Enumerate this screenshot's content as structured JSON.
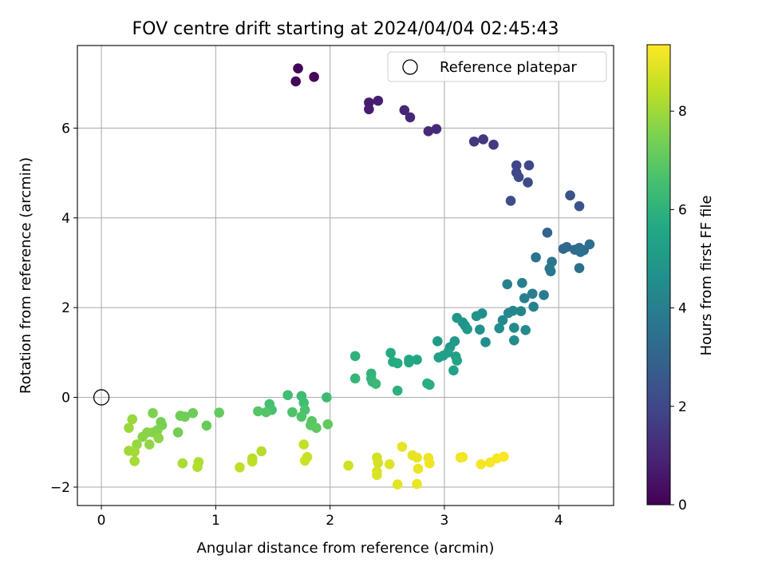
{
  "chart_data": {
    "type": "scatter",
    "title": "FOV centre drift starting at 2024/04/04 02:45:43",
    "xlabel": "Angular distance from reference (arcmin)",
    "ylabel": "Rotation from reference (arcmin)",
    "xlim": [
      -0.21,
      4.48
    ],
    "ylim": [
      -2.41,
      7.84
    ],
    "xticks": [
      0,
      1,
      2,
      3,
      4
    ],
    "xtick_labels": [
      "0",
      "1",
      "2",
      "3",
      "4"
    ],
    "yticks": [
      -2,
      0,
      2,
      4,
      6
    ],
    "ytick_labels": [
      "−2",
      "0",
      "2",
      "4",
      "6"
    ],
    "grid": true,
    "legend": {
      "placement": "top-right",
      "entries": [
        "Reference platepar"
      ]
    },
    "reference_point": {
      "x": 0,
      "y": 0,
      "label": "Reference platepar"
    },
    "colorbar": {
      "label": "Hours from first FF file",
      "range": [
        0,
        9.35
      ],
      "ticks": [
        0,
        2,
        4,
        6,
        8
      ],
      "tick_labels": [
        "0",
        "2",
        "4",
        "6",
        "8"
      ],
      "colormap": "viridis"
    },
    "points": [
      {
        "x": 1.72,
        "y": 7.33,
        "t": 0.05
      },
      {
        "x": 1.7,
        "y": 7.04,
        "t": 0.1
      },
      {
        "x": 1.86,
        "y": 7.14,
        "t": 0.15
      },
      {
        "x": 2.34,
        "y": 6.57,
        "t": 0.7
      },
      {
        "x": 2.34,
        "y": 6.42,
        "t": 0.75
      },
      {
        "x": 2.42,
        "y": 6.61,
        "t": 0.8
      },
      {
        "x": 2.65,
        "y": 6.4,
        "t": 1.0
      },
      {
        "x": 2.7,
        "y": 6.24,
        "t": 1.05
      },
      {
        "x": 2.86,
        "y": 5.93,
        "t": 1.1
      },
      {
        "x": 2.93,
        "y": 5.98,
        "t": 1.15
      },
      {
        "x": 3.26,
        "y": 5.7,
        "t": 1.45
      },
      {
        "x": 3.34,
        "y": 5.75,
        "t": 1.5
      },
      {
        "x": 3.43,
        "y": 5.63,
        "t": 1.55
      },
      {
        "x": 3.63,
        "y": 5.17,
        "t": 1.9
      },
      {
        "x": 3.63,
        "y": 5.01,
        "t": 1.95
      },
      {
        "x": 3.65,
        "y": 4.91,
        "t": 2.0
      },
      {
        "x": 3.74,
        "y": 5.17,
        "t": 2.05
      },
      {
        "x": 3.73,
        "y": 4.79,
        "t": 2.1
      },
      {
        "x": 3.58,
        "y": 4.38,
        "t": 2.2
      },
      {
        "x": 4.1,
        "y": 4.5,
        "t": 2.4
      },
      {
        "x": 4.18,
        "y": 4.26,
        "t": 2.45
      },
      {
        "x": 3.9,
        "y": 3.67,
        "t": 3.0
      },
      {
        "x": 4.04,
        "y": 3.31,
        "t": 3.1
      },
      {
        "x": 4.07,
        "y": 3.35,
        "t": 3.15
      },
      {
        "x": 4.14,
        "y": 3.29,
        "t": 3.2
      },
      {
        "x": 4.18,
        "y": 3.33,
        "t": 3.25
      },
      {
        "x": 4.22,
        "y": 3.28,
        "t": 3.3
      },
      {
        "x": 4.27,
        "y": 3.41,
        "t": 3.35
      },
      {
        "x": 4.19,
        "y": 3.24,
        "t": 3.4
      },
      {
        "x": 4.18,
        "y": 2.88,
        "t": 3.45
      },
      {
        "x": 3.8,
        "y": 3.12,
        "t": 3.55
      },
      {
        "x": 3.94,
        "y": 3.02,
        "t": 3.65
      },
      {
        "x": 3.92,
        "y": 2.87,
        "t": 3.7
      },
      {
        "x": 3.93,
        "y": 2.81,
        "t": 3.75
      },
      {
        "x": 3.87,
        "y": 2.28,
        "t": 3.85
      },
      {
        "x": 3.77,
        "y": 2.31,
        "t": 3.95
      },
      {
        "x": 3.7,
        "y": 2.21,
        "t": 4.0
      },
      {
        "x": 3.68,
        "y": 2.55,
        "t": 4.05
      },
      {
        "x": 3.55,
        "y": 2.52,
        "t": 4.1
      },
      {
        "x": 3.78,
        "y": 2.02,
        "t": 4.15
      },
      {
        "x": 3.67,
        "y": 1.92,
        "t": 4.2
      },
      {
        "x": 3.6,
        "y": 1.93,
        "t": 4.25
      },
      {
        "x": 3.56,
        "y": 1.88,
        "t": 4.3
      },
      {
        "x": 3.51,
        "y": 1.72,
        "t": 4.35
      },
      {
        "x": 3.71,
        "y": 1.5,
        "t": 4.4
      },
      {
        "x": 3.61,
        "y": 1.55,
        "t": 4.45
      },
      {
        "x": 3.61,
        "y": 1.27,
        "t": 4.5
      },
      {
        "x": 3.48,
        "y": 1.54,
        "t": 4.55
      },
      {
        "x": 3.36,
        "y": 1.23,
        "t": 4.6
      },
      {
        "x": 3.33,
        "y": 1.87,
        "t": 4.65
      },
      {
        "x": 3.31,
        "y": 1.51,
        "t": 4.7
      },
      {
        "x": 3.28,
        "y": 1.81,
        "t": 4.75
      },
      {
        "x": 3.18,
        "y": 1.6,
        "t": 4.8
      },
      {
        "x": 3.16,
        "y": 1.67,
        "t": 4.85
      },
      {
        "x": 3.11,
        "y": 1.77,
        "t": 4.9
      },
      {
        "x": 3.2,
        "y": 1.52,
        "t": 4.95
      },
      {
        "x": 3.09,
        "y": 1.25,
        "t": 5.0
      },
      {
        "x": 3.05,
        "y": 1.12,
        "t": 5.05
      },
      {
        "x": 2.94,
        "y": 1.25,
        "t": 5.1
      },
      {
        "x": 3.03,
        "y": 1.0,
        "t": 5.15
      },
      {
        "x": 3.1,
        "y": 0.91,
        "t": 5.2
      },
      {
        "x": 2.95,
        "y": 0.89,
        "t": 5.25
      },
      {
        "x": 2.99,
        "y": 0.93,
        "t": 5.3
      },
      {
        "x": 3.08,
        "y": 0.6,
        "t": 5.35
      },
      {
        "x": 3.11,
        "y": 0.82,
        "t": 5.4
      },
      {
        "x": 2.69,
        "y": 0.84,
        "t": 5.5
      },
      {
        "x": 2.76,
        "y": 0.84,
        "t": 5.55
      },
      {
        "x": 2.69,
        "y": 0.78,
        "t": 5.6
      },
      {
        "x": 2.53,
        "y": 0.99,
        "t": 5.65
      },
      {
        "x": 2.55,
        "y": 0.79,
        "t": 5.7
      },
      {
        "x": 2.59,
        "y": 0.76,
        "t": 5.75
      },
      {
        "x": 2.85,
        "y": 0.31,
        "t": 5.8
      },
      {
        "x": 2.87,
        "y": 0.28,
        "t": 5.85
      },
      {
        "x": 2.59,
        "y": 0.15,
        "t": 5.9
      },
      {
        "x": 2.22,
        "y": 0.92,
        "t": 6.0
      },
      {
        "x": 2.36,
        "y": 0.53,
        "t": 6.05
      },
      {
        "x": 2.36,
        "y": 0.42,
        "t": 6.1
      },
      {
        "x": 2.22,
        "y": 0.42,
        "t": 6.15
      },
      {
        "x": 2.37,
        "y": 0.35,
        "t": 6.2
      },
      {
        "x": 2.4,
        "y": 0.3,
        "t": 6.25
      },
      {
        "x": 1.97,
        "y": 0.0,
        "t": 6.35
      },
      {
        "x": 1.75,
        "y": 0.03,
        "t": 6.4
      },
      {
        "x": 1.63,
        "y": 0.05,
        "t": 6.45
      },
      {
        "x": 1.77,
        "y": -0.12,
        "t": 6.5
      },
      {
        "x": 1.47,
        "y": -0.15,
        "t": 6.55
      },
      {
        "x": 1.49,
        "y": -0.28,
        "t": 6.6
      },
      {
        "x": 1.78,
        "y": -0.28,
        "t": 6.65
      },
      {
        "x": 1.67,
        "y": -0.33,
        "t": 6.7
      },
      {
        "x": 1.75,
        "y": -0.43,
        "t": 6.75
      },
      {
        "x": 1.44,
        "y": -0.33,
        "t": 6.8
      },
      {
        "x": 1.37,
        "y": -0.31,
        "t": 6.85
      },
      {
        "x": 1.84,
        "y": -0.53,
        "t": 6.9
      },
      {
        "x": 1.83,
        "y": -0.62,
        "t": 6.95
      },
      {
        "x": 1.88,
        "y": -0.68,
        "t": 7.0
      },
      {
        "x": 1.98,
        "y": -0.6,
        "t": 7.05
      },
      {
        "x": 1.03,
        "y": -0.34,
        "t": 7.1
      },
      {
        "x": 0.92,
        "y": -0.63,
        "t": 7.15
      },
      {
        "x": 0.8,
        "y": -0.35,
        "t": 7.2
      },
      {
        "x": 0.69,
        "y": -0.41,
        "t": 7.25
      },
      {
        "x": 0.73,
        "y": -0.43,
        "t": 7.3
      },
      {
        "x": 0.67,
        "y": -0.78,
        "t": 7.35
      },
      {
        "x": 0.52,
        "y": -0.55,
        "t": 7.4
      },
      {
        "x": 0.53,
        "y": -0.62,
        "t": 7.45
      },
      {
        "x": 0.45,
        "y": -0.35,
        "t": 7.5
      },
      {
        "x": 0.49,
        "y": -0.73,
        "t": 7.55
      },
      {
        "x": 0.45,
        "y": -0.78,
        "t": 7.6
      },
      {
        "x": 0.4,
        "y": -0.78,
        "t": 7.65
      },
      {
        "x": 0.36,
        "y": -0.88,
        "t": 7.7
      },
      {
        "x": 0.5,
        "y": -0.91,
        "t": 7.75
      },
      {
        "x": 0.42,
        "y": -1.05,
        "t": 7.8
      },
      {
        "x": 0.31,
        "y": -1.05,
        "t": 7.85
      },
      {
        "x": 0.27,
        "y": -0.49,
        "t": 7.9
      },
      {
        "x": 0.24,
        "y": -0.68,
        "t": 7.95
      },
      {
        "x": 0.24,
        "y": -1.19,
        "t": 8.0
      },
      {
        "x": 0.29,
        "y": -1.21,
        "t": 8.05
      },
      {
        "x": 0.29,
        "y": -1.42,
        "t": 8.1
      },
      {
        "x": 0.71,
        "y": -1.47,
        "t": 8.15
      },
      {
        "x": 0.85,
        "y": -1.44,
        "t": 8.2
      },
      {
        "x": 0.84,
        "y": -1.55,
        "t": 8.25
      },
      {
        "x": 1.4,
        "y": -1.2,
        "t": 8.3
      },
      {
        "x": 1.32,
        "y": -1.36,
        "t": 8.35
      },
      {
        "x": 1.32,
        "y": -1.43,
        "t": 8.4
      },
      {
        "x": 1.21,
        "y": -1.56,
        "t": 8.45
      },
      {
        "x": 1.77,
        "y": -1.05,
        "t": 8.5
      },
      {
        "x": 1.8,
        "y": -1.33,
        "t": 8.55
      },
      {
        "x": 1.78,
        "y": -1.41,
        "t": 8.6
      },
      {
        "x": 2.16,
        "y": -1.52,
        "t": 8.65
      },
      {
        "x": 2.41,
        "y": -1.34,
        "t": 8.7
      },
      {
        "x": 2.42,
        "y": -1.46,
        "t": 8.75
      },
      {
        "x": 2.41,
        "y": -1.65,
        "t": 8.8
      },
      {
        "x": 2.41,
        "y": -1.73,
        "t": 8.85
      },
      {
        "x": 2.52,
        "y": -1.49,
        "t": 8.9
      },
      {
        "x": 2.59,
        "y": -1.94,
        "t": 8.95
      },
      {
        "x": 2.63,
        "y": -1.1,
        "t": 9.0
      },
      {
        "x": 2.72,
        "y": -1.29,
        "t": 9.02
      },
      {
        "x": 2.76,
        "y": -1.34,
        "t": 9.05
      },
      {
        "x": 2.77,
        "y": -1.59,
        "t": 9.07
      },
      {
        "x": 2.76,
        "y": -1.93,
        "t": 9.1
      },
      {
        "x": 2.86,
        "y": -1.35,
        "t": 9.12
      },
      {
        "x": 2.87,
        "y": -1.47,
        "t": 9.15
      },
      {
        "x": 3.14,
        "y": -1.34,
        "t": 9.17
      },
      {
        "x": 3.16,
        "y": -1.33,
        "t": 9.2
      },
      {
        "x": 3.32,
        "y": -1.49,
        "t": 9.22
      },
      {
        "x": 3.4,
        "y": -1.45,
        "t": 9.25
      },
      {
        "x": 3.46,
        "y": -1.36,
        "t": 9.28
      },
      {
        "x": 3.52,
        "y": -1.32,
        "t": 9.3
      }
    ]
  }
}
